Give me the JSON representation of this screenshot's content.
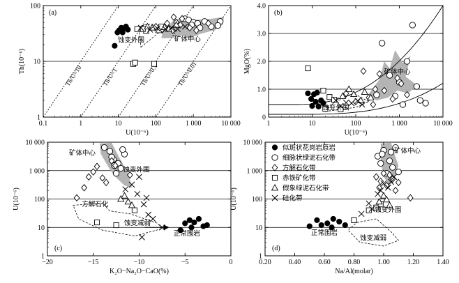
{
  "figure": {
    "legend": [
      {
        "key": "granite",
        "symbol": "filled-circle",
        "label": "似斑状花岗岩原岩"
      },
      {
        "key": "chlorite",
        "symbol": "open-circle",
        "label": "细脉状绿泥石化带"
      },
      {
        "key": "calcite",
        "symbol": "open-diamond",
        "label": "方解石化带"
      },
      {
        "key": "hematite",
        "symbol": "open-square",
        "label": "赤铁矿化带"
      },
      {
        "key": "pseudo",
        "symbol": "open-triangle",
        "label": "假象绿泥石化带"
      },
      {
        "key": "silica",
        "symbol": "x-cross",
        "label": "硅化带"
      }
    ],
    "colors": {
      "field_fill": "#b4b4b4",
      "ink": "#000000"
    }
  },
  "chart_data": [
    {
      "id": "a",
      "type": "scatter",
      "panel_label": "(a)",
      "xlabel": "U(10⁻⁶)",
      "ylabel": "Th(10⁻⁶)",
      "xscale": "log",
      "yscale": "log",
      "xlim": [
        0.1,
        10000
      ],
      "ylim": [
        1,
        100
      ],
      "xticks": [
        0.1,
        1,
        10,
        100,
        1000,
        10000
      ],
      "xticklabels": [
        "0.1",
        "1",
        "10",
        "100",
        "1 000",
        "10 000"
      ],
      "yticks": [
        1,
        10,
        100
      ],
      "yticklabels": [
        "1",
        "10",
        "100"
      ],
      "grid_y": [
        10
      ],
      "reference_lines": [
        {
          "label": "Th/U=10",
          "ratio": 10
        },
        {
          "label": "Th/U=1",
          "ratio": 1
        },
        {
          "label": "Th/U=0.1",
          "ratio": 0.1
        },
        {
          "label": "Th/U=0.01",
          "ratio": 0.01
        }
      ],
      "annotations": [
        {
          "text": "蚀变外围",
          "x": 22,
          "y": 22
        },
        {
          "text": "矿体中心",
          "x": 700,
          "y": 23
        }
      ],
      "series": [
        {
          "key": "granite",
          "points": [
            [
              8,
              19
            ],
            [
              9.5,
              33
            ],
            [
              10.5,
              36
            ],
            [
              12,
              40
            ],
            [
              14,
              39
            ],
            [
              16,
              42
            ],
            [
              13,
              33
            ],
            [
              18,
              37
            ]
          ]
        },
        {
          "key": "chlorite",
          "points": [
            [
              600,
              58
            ],
            [
              750,
              55
            ],
            [
              1000,
              50
            ],
            [
              1300,
              48
            ],
            [
              2000,
              52
            ],
            [
              900,
              45
            ],
            [
              3000,
              42
            ],
            [
              5200,
              52
            ],
            [
              1500,
              40
            ],
            [
              4500,
              44
            ]
          ]
        },
        {
          "key": "calcite",
          "points": [
            [
              100,
              42
            ],
            [
              200,
              48
            ],
            [
              300,
              62
            ],
            [
              350,
              50
            ],
            [
              500,
              58
            ],
            [
              150,
              37
            ],
            [
              800,
              40
            ],
            [
              280,
              36
            ],
            [
              450,
              45
            ],
            [
              1200,
              36
            ],
            [
              2500,
              48
            ]
          ]
        },
        {
          "key": "hematite",
          "points": [
            [
              25,
              9
            ],
            [
              28,
              9.5
            ],
            [
              90,
              9
            ],
            [
              32,
              38
            ],
            [
              55,
              35
            ],
            [
              45,
              38
            ],
            [
              140,
              42
            ]
          ]
        },
        {
          "key": "pseudo",
          "points": [
            [
              60,
              42
            ],
            [
              80,
              40
            ],
            [
              120,
              36
            ],
            [
              170,
              41
            ],
            [
              220,
              38
            ],
            [
              350,
              45
            ]
          ]
        },
        {
          "key": "silica",
          "points": [
            [
              40,
              40
            ],
            [
              70,
              37
            ],
            [
              110,
              39
            ],
            [
              180,
              38
            ],
            [
              260,
              40
            ],
            [
              380,
              38
            ],
            [
              600,
              42
            ]
          ]
        }
      ]
    },
    {
      "id": "b",
      "type": "scatter",
      "panel_label": "(b)",
      "xlabel": "U(10⁻⁶)",
      "ylabel": "MgO(%)",
      "xscale": "log",
      "yscale": "linear",
      "xlim": [
        1,
        10000
      ],
      "ylim": [
        0,
        4
      ],
      "xticks": [
        1,
        10,
        100,
        1000,
        10000
      ],
      "xticklabels": [
        "1",
        "10",
        "100",
        "1 000",
        "10 000"
      ],
      "yticks": [
        0,
        1,
        2,
        3,
        4
      ],
      "yticklabels": [
        "0",
        "1.0",
        "2.0",
        "3.0",
        "4.0"
      ],
      "grid_y": [
        1,
        2,
        3
      ],
      "annotations": [
        {
          "text": "蚀变外围",
          "x": 35,
          "y": 0.26
        },
        {
          "text": "矿体中心",
          "x": 900,
          "y": 1.55
        }
      ],
      "series": [
        {
          "key": "granite",
          "points": [
            [
              8,
              0.85
            ],
            [
              9.5,
              0.65
            ],
            [
              10,
              0.4
            ],
            [
              11,
              0.82
            ],
            [
              12,
              0.55
            ],
            [
              14,
              0.38
            ],
            [
              16,
              0.6
            ],
            [
              13,
              0.88
            ],
            [
              18,
              0.5
            ]
          ]
        },
        {
          "key": "chlorite",
          "points": [
            [
              300,
              0.8
            ],
            [
              400,
              2.65
            ],
            [
              600,
              1.5
            ],
            [
              800,
              0.75
            ],
            [
              1000,
              1.25
            ],
            [
              1200,
              0.45
            ],
            [
              2000,
              3.3
            ],
            [
              3000,
              0.6
            ],
            [
              1500,
              2.0
            ],
            [
              2500,
              1.1
            ],
            [
              4000,
              0.5
            ]
          ]
        },
        {
          "key": "calcite",
          "points": [
            [
              60,
              0.85
            ],
            [
              100,
              0.55
            ],
            [
              150,
              1.65
            ],
            [
              200,
              0.7
            ],
            [
              280,
              1.0
            ],
            [
              350,
              1.55
            ],
            [
              450,
              0.95
            ],
            [
              700,
              0.65
            ],
            [
              900,
              1.4
            ],
            [
              1100,
              1.2
            ],
            [
              250,
              0.45
            ],
            [
              1500,
              0.8
            ]
          ]
        },
        {
          "key": "hematite",
          "points": [
            [
              8,
              1.75
            ],
            [
              18,
              0.95
            ],
            [
              20,
              0.3
            ],
            [
              25,
              0.72
            ],
            [
              32,
              0.62
            ],
            [
              45,
              0.28
            ]
          ]
        },
        {
          "key": "pseudo",
          "points": [
            [
              50,
              0.75
            ],
            [
              70,
              1.0
            ],
            [
              90,
              0.82
            ],
            [
              130,
              0.6
            ],
            [
              160,
              0.9
            ],
            [
              220,
              0.7
            ]
          ]
        },
        {
          "key": "silica",
          "points": [
            [
              35,
              0.6
            ],
            [
              45,
              0.4
            ],
            [
              60,
              0.52
            ],
            [
              80,
              0.5
            ],
            [
              110,
              0.58
            ],
            [
              140,
              0.45
            ]
          ]
        }
      ]
    },
    {
      "id": "c",
      "type": "scatter",
      "panel_label": "(c)",
      "xlabel": "K₂O−Na₂O−CaO(%)",
      "ylabel": "U(10⁻⁶)",
      "xscale": "linear",
      "yscale": "log",
      "xlim": [
        -20,
        0
      ],
      "ylim": [
        1,
        10000
      ],
      "xticks": [
        -20,
        -15,
        -10,
        -5,
        0
      ],
      "xticklabels": [
        "−20",
        "−15",
        "−10",
        "−5",
        "0"
      ],
      "yticks": [
        1,
        10,
        100,
        1000,
        10000
      ],
      "yticklabels": [
        "1",
        "10",
        "100",
        "1 000",
        "10 000"
      ],
      "grid_y": [
        10,
        100,
        1000
      ],
      "annotations": [
        {
          "text": "矿体中心",
          "x": -16.2,
          "y": 3500
        },
        {
          "text": "蚀变外围",
          "x": -10.3,
          "y": 900
        },
        {
          "text": "方解石化",
          "x": -14.8,
          "y": 55
        },
        {
          "text": "蚀变减弱",
          "x": -10.2,
          "y": 12
        },
        {
          "text": "正常围岩",
          "x": -4.8,
          "y": 5.2
        }
      ],
      "series": [
        {
          "key": "granite",
          "points": [
            [
              -5.5,
              8
            ],
            [
              -5.0,
              14
            ],
            [
              -4.5,
              18
            ],
            [
              -4.0,
              15
            ],
            [
              -3.5,
              20
            ],
            [
              -3.0,
              11
            ],
            [
              -2.6,
              12
            ],
            [
              -4.3,
              10
            ]
          ]
        },
        {
          "key": "chlorite",
          "points": [
            [
              -13.8,
              6500
            ],
            [
              -13.2,
              4800
            ],
            [
              -12.8,
              2500
            ],
            [
              -12.3,
              1800
            ],
            [
              -12.0,
              1200
            ],
            [
              -11.6,
              3800
            ],
            [
              -12.5,
              800
            ],
            [
              -13.0,
              3000
            ],
            [
              -11.8,
              5500
            ],
            [
              -12.7,
              1500
            ]
          ]
        },
        {
          "key": "calcite",
          "points": [
            [
              -16.8,
              110
            ],
            [
              -16.0,
              250
            ],
            [
              -15.5,
              600
            ],
            [
              -15.0,
              900
            ],
            [
              -14.6,
              1400
            ],
            [
              -14.0,
              550
            ],
            [
              -13.6,
              380
            ],
            [
              -13.0,
              2200
            ],
            [
              -12.6,
              1500
            ],
            [
              -11.0,
              700
            ]
          ]
        },
        {
          "key": "hematite",
          "points": [
            [
              -14.6,
              15
            ],
            [
              -12.5,
              12
            ],
            [
              -10.5,
              40
            ]
          ]
        },
        {
          "key": "pseudo",
          "points": [
            [
              -12.0,
              100
            ],
            [
              -11.6,
              130
            ],
            [
              -11.2,
              80
            ],
            [
              -10.8,
              60
            ]
          ]
        },
        {
          "key": "silica",
          "points": [
            [
              -11.5,
              220
            ],
            [
              -10.8,
              320
            ],
            [
              -10.2,
              150
            ],
            [
              -10.0,
              600
            ],
            [
              -9.5,
              65
            ],
            [
              -9.0,
              28
            ],
            [
              -8.5,
              20
            ],
            [
              -7.5,
              10
            ],
            [
              -9.7,
              4.5
            ],
            [
              -9.2,
              110
            ]
          ]
        }
      ]
    },
    {
      "id": "d",
      "type": "scatter",
      "panel_label": "(d)",
      "xlabel": "Na/Al(molar)",
      "ylabel": "U(10⁻⁶)",
      "xscale": "linear",
      "yscale": "log",
      "xlim": [
        0.2,
        1.4
      ],
      "ylim": [
        1,
        10000
      ],
      "xticks": [
        0.2,
        0.4,
        0.6,
        0.8,
        1.0,
        1.2,
        1.4
      ],
      "xticklabels": [
        "0.20",
        "0.40",
        "0.60",
        "0.80",
        "1.00",
        "1.20",
        "1.40"
      ],
      "yticks": [
        1,
        10,
        100,
        1000,
        10000
      ],
      "yticklabels": [
        "1",
        "10",
        "100",
        "1 000",
        "10 000"
      ],
      "grid_y": [
        10,
        100,
        1000
      ],
      "annotations": [
        {
          "text": "矿体中心",
          "x": 1.16,
          "y": 4200
        },
        {
          "text": "蚀变外围",
          "x": 1.03,
          "y": 35
        },
        {
          "text": "正常围岩",
          "x": 0.6,
          "y": 5.5
        },
        {
          "text": "蚀变减弱",
          "x": 0.93,
          "y": 3.6
        }
      ],
      "series": [
        {
          "key": "granite",
          "points": [
            [
              0.5,
              11
            ],
            [
              0.55,
              18
            ],
            [
              0.58,
              12
            ],
            [
              0.62,
              14
            ],
            [
              0.66,
              20
            ],
            [
              0.7,
              16
            ],
            [
              0.74,
              12
            ],
            [
              0.65,
              10
            ]
          ]
        },
        {
          "key": "chlorite",
          "points": [
            [
              0.96,
              3200
            ],
            [
              0.98,
              1800
            ],
            [
              1.0,
              5200
            ],
            [
              1.02,
              800
            ],
            [
              1.04,
              2200
            ],
            [
              1.06,
              1300
            ],
            [
              1.08,
              6500
            ],
            [
              1.1,
              900
            ],
            [
              0.99,
              3800
            ],
            [
              1.05,
              4500
            ]
          ]
        },
        {
          "key": "calcite",
          "points": [
            [
              0.95,
              600
            ],
            [
              0.98,
              420
            ],
            [
              1.0,
              800
            ],
            [
              1.02,
              300
            ],
            [
              1.04,
              700
            ],
            [
              1.06,
              500
            ],
            [
              1.08,
              200
            ],
            [
              1.1,
              380
            ],
            [
              1.18,
              110
            ],
            [
              0.97,
              250
            ]
          ]
        },
        {
          "key": "hematite",
          "points": [
            [
              0.8,
              18
            ],
            [
              0.9,
              40
            ],
            [
              0.95,
              50
            ],
            [
              0.98,
              65
            ]
          ]
        },
        {
          "key": "pseudo",
          "points": [
            [
              0.97,
              80
            ],
            [
              1.0,
              130
            ],
            [
              1.02,
              95
            ],
            [
              1.04,
              60
            ]
          ]
        },
        {
          "key": "silica",
          "points": [
            [
              0.85,
              30
            ],
            [
              0.9,
              70
            ],
            [
              0.96,
              150
            ],
            [
              0.98,
              200
            ],
            [
              1.0,
              350
            ],
            [
              1.03,
              250
            ],
            [
              1.05,
              400
            ],
            [
              1.07,
              600
            ],
            [
              0.92,
              45
            ]
          ]
        }
      ]
    }
  ]
}
